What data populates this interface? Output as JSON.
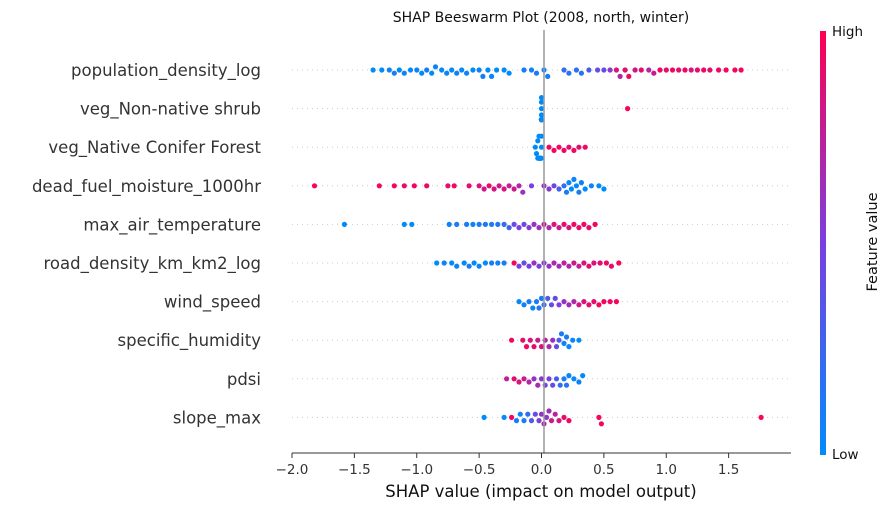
{
  "chart_data": {
    "type": "scatter",
    "subtype": "shap-beeswarm",
    "title": "SHAP Beeswarm Plot (2008, north, winter)",
    "xlabel": "SHAP value (impact on model output)",
    "xlim": [
      -2.0,
      2.0
    ],
    "xticks": [
      -2.0,
      -1.5,
      -1.0,
      -0.5,
      0.0,
      0.5,
      1.0,
      1.5
    ],
    "xtick_labels": [
      "−2.0",
      "−1.5",
      "−1.0",
      "−0.5",
      "0.0",
      "0.5",
      "1.0",
      "1.5"
    ],
    "grid": false,
    "colorbar": {
      "title": "Feature value",
      "high_label": "High",
      "low_label": "Low",
      "low_color": "#008bfb",
      "high_color": "#ff0052"
    },
    "features": [
      {
        "name": "population_density_log",
        "points": [
          [
            -1.35,
            0.0
          ],
          [
            -1.28,
            0.0
          ],
          [
            -1.22,
            0.05
          ],
          [
            -1.18,
            0.1
          ],
          [
            -1.14,
            0.0
          ],
          [
            -1.1,
            0.05
          ],
          [
            -1.05,
            0.0
          ],
          [
            -1.0,
            0.05
          ],
          [
            -0.96,
            0.0
          ],
          [
            -0.92,
            0.1
          ],
          [
            -0.88,
            0.0
          ],
          [
            -0.85,
            0.05
          ],
          [
            -0.8,
            0.0
          ],
          [
            -0.76,
            0.05
          ],
          [
            -0.72,
            0.0
          ],
          [
            -0.68,
            0.1
          ],
          [
            -0.64,
            0.0
          ],
          [
            -0.6,
            0.05
          ],
          [
            -0.55,
            0.0
          ],
          [
            -0.5,
            0.05
          ],
          [
            -0.47,
            0.1
          ],
          [
            -0.43,
            0.0
          ],
          [
            -0.4,
            0.05
          ],
          [
            -0.36,
            0.0
          ],
          [
            -0.3,
            0.0
          ],
          [
            -0.26,
            0.0
          ],
          [
            -0.14,
            0.1
          ],
          [
            -0.08,
            0.05
          ],
          [
            -0.04,
            0.1
          ],
          [
            0.02,
            0.05
          ],
          [
            0.05,
            0.1
          ],
          [
            0.18,
            0.2
          ],
          [
            0.22,
            0.15
          ],
          [
            0.28,
            0.2
          ],
          [
            0.32,
            0.15
          ],
          [
            0.38,
            0.3
          ],
          [
            0.45,
            0.4
          ],
          [
            0.5,
            0.4
          ],
          [
            0.55,
            0.55
          ],
          [
            0.6,
            0.85
          ],
          [
            0.63,
            0.7
          ],
          [
            0.67,
            0.9
          ],
          [
            0.7,
            0.95
          ],
          [
            0.75,
            0.8
          ],
          [
            0.8,
            0.9
          ],
          [
            0.86,
            0.7
          ],
          [
            0.9,
            0.8
          ],
          [
            0.95,
            0.95
          ],
          [
            1.0,
            0.9
          ],
          [
            1.05,
            0.95
          ],
          [
            1.1,
            0.9
          ],
          [
            1.15,
            0.95
          ],
          [
            1.2,
            0.85
          ],
          [
            1.25,
            0.9
          ],
          [
            1.3,
            0.95
          ],
          [
            1.35,
            0.9
          ],
          [
            1.42,
            0.95
          ],
          [
            1.48,
            0.95
          ],
          [
            1.55,
            0.95
          ],
          [
            1.6,
            0.95
          ]
        ]
      },
      {
        "name": "veg_Non-native shrub ",
        "points": [
          [
            0.0,
            0.0
          ],
          [
            0.0,
            0.0
          ],
          [
            0.0,
            0.0
          ],
          [
            0.0,
            0.0
          ],
          [
            0.0,
            0.0
          ],
          [
            0.0,
            0.0
          ],
          [
            0.0,
            0.0
          ],
          [
            0.0,
            0.0
          ],
          [
            0.0,
            0.0
          ],
          [
            0.0,
            0.0
          ],
          [
            0.0,
            0.0
          ],
          [
            0.0,
            0.0
          ],
          [
            0.0,
            0.0
          ],
          [
            0.0,
            0.0
          ],
          [
            0.0,
            0.0
          ],
          [
            0.0,
            0.0
          ],
          [
            0.69,
            0.98
          ]
        ]
      },
      {
        "name": "veg_Native Conifer Forest ",
        "points": [
          [
            -0.05,
            0.0
          ],
          [
            -0.04,
            0.0
          ],
          [
            -0.03,
            0.0
          ],
          [
            -0.03,
            0.0
          ],
          [
            -0.02,
            0.0
          ],
          [
            -0.02,
            0.0
          ],
          [
            -0.02,
            0.0
          ],
          [
            -0.01,
            0.0
          ],
          [
            -0.01,
            0.0
          ],
          [
            -0.01,
            0.0
          ],
          [
            -0.01,
            0.0
          ],
          [
            -0.01,
            0.0
          ],
          [
            -0.01,
            0.0
          ],
          [
            0.0,
            0.0
          ],
          [
            0.0,
            0.0
          ],
          [
            0.0,
            0.0
          ],
          [
            0.06,
            0.95
          ],
          [
            0.1,
            0.95
          ],
          [
            0.14,
            0.95
          ],
          [
            0.18,
            0.95
          ],
          [
            0.22,
            0.9
          ],
          [
            0.26,
            0.95
          ],
          [
            0.3,
            0.9
          ],
          [
            0.35,
            0.95
          ]
        ]
      },
      {
        "name": "dead_fuel_moisture_1000hr",
        "points": [
          [
            -1.82,
            0.98
          ],
          [
            -1.3,
            0.95
          ],
          [
            -1.18,
            0.95
          ],
          [
            -1.1,
            0.9
          ],
          [
            -1.02,
            0.95
          ],
          [
            -0.92,
            0.95
          ],
          [
            -0.75,
            0.9
          ],
          [
            -0.7,
            0.95
          ],
          [
            -0.58,
            0.9
          ],
          [
            -0.5,
            0.85
          ],
          [
            -0.46,
            0.8
          ],
          [
            -0.42,
            0.9
          ],
          [
            -0.38,
            0.85
          ],
          [
            -0.34,
            0.8
          ],
          [
            -0.3,
            0.85
          ],
          [
            -0.26,
            0.75
          ],
          [
            -0.22,
            0.8
          ],
          [
            -0.18,
            0.7
          ],
          [
            -0.15,
            0.6
          ],
          [
            -0.08,
            0.5
          ],
          [
            0.02,
            0.6
          ],
          [
            0.06,
            0.55
          ],
          [
            0.1,
            0.45
          ],
          [
            0.14,
            0.3
          ],
          [
            0.18,
            0.2
          ],
          [
            0.2,
            0.1
          ],
          [
            0.22,
            0.05
          ],
          [
            0.24,
            0.0
          ],
          [
            0.26,
            0.05
          ],
          [
            0.28,
            0.0
          ],
          [
            0.3,
            0.1
          ],
          [
            0.32,
            0.05
          ],
          [
            0.35,
            0.0
          ],
          [
            0.4,
            0.05
          ],
          [
            0.46,
            0.0
          ],
          [
            0.5,
            0.0
          ]
        ]
      },
      {
        "name": "max_air_temperature",
        "points": [
          [
            -1.58,
            0.0
          ],
          [
            -1.1,
            0.0
          ],
          [
            -1.04,
            0.0
          ],
          [
            -0.74,
            0.05
          ],
          [
            -0.68,
            0.1
          ],
          [
            -0.6,
            0.1
          ],
          [
            -0.55,
            0.05
          ],
          [
            -0.5,
            0.1
          ],
          [
            -0.45,
            0.15
          ],
          [
            -0.4,
            0.1
          ],
          [
            -0.35,
            0.15
          ],
          [
            -0.3,
            0.2
          ],
          [
            -0.26,
            0.3
          ],
          [
            -0.22,
            0.4
          ],
          [
            -0.18,
            0.5
          ],
          [
            -0.14,
            0.45
          ],
          [
            -0.1,
            0.55
          ],
          [
            -0.06,
            0.6
          ],
          [
            -0.02,
            0.65
          ],
          [
            0.02,
            0.75
          ],
          [
            0.06,
            0.7
          ],
          [
            0.1,
            0.85
          ],
          [
            0.14,
            0.8
          ],
          [
            0.18,
            0.9
          ],
          [
            0.22,
            0.85
          ],
          [
            0.26,
            0.95
          ],
          [
            0.3,
            0.9
          ],
          [
            0.34,
            0.95
          ],
          [
            0.38,
            0.9
          ],
          [
            0.43,
            0.95
          ]
        ]
      },
      {
        "name": "road_density_km_km2_log",
        "points": [
          [
            -0.84,
            0.0
          ],
          [
            -0.78,
            0.05
          ],
          [
            -0.72,
            0.0
          ],
          [
            -0.68,
            0.05
          ],
          [
            -0.62,
            0.0
          ],
          [
            -0.58,
            0.1
          ],
          [
            -0.54,
            0.0
          ],
          [
            -0.5,
            0.05
          ],
          [
            -0.45,
            0.0
          ],
          [
            -0.4,
            0.1
          ],
          [
            -0.35,
            0.05
          ],
          [
            -0.3,
            0.1
          ],
          [
            -0.22,
            0.95
          ],
          [
            -0.18,
            0.5
          ],
          [
            -0.14,
            0.4
          ],
          [
            -0.1,
            0.5
          ],
          [
            -0.06,
            0.6
          ],
          [
            -0.02,
            0.5
          ],
          [
            0.02,
            0.55
          ],
          [
            0.06,
            0.6
          ],
          [
            0.1,
            0.7
          ],
          [
            0.14,
            0.65
          ],
          [
            0.18,
            0.75
          ],
          [
            0.22,
            0.7
          ],
          [
            0.26,
            0.8
          ],
          [
            0.3,
            0.75
          ],
          [
            0.34,
            0.85
          ],
          [
            0.38,
            0.9
          ],
          [
            0.42,
            0.85
          ],
          [
            0.47,
            0.9
          ],
          [
            0.52,
            0.95
          ],
          [
            0.56,
            0.9
          ],
          [
            0.62,
            0.98
          ]
        ]
      },
      {
        "name": "wind_speed",
        "points": [
          [
            -0.18,
            0.0
          ],
          [
            -0.14,
            0.05
          ],
          [
            -0.1,
            0.1
          ],
          [
            -0.07,
            0.05
          ],
          [
            -0.04,
            0.1
          ],
          [
            -0.02,
            0.15
          ],
          [
            0.0,
            0.1
          ],
          [
            0.02,
            0.2
          ],
          [
            0.05,
            0.3
          ],
          [
            0.08,
            0.4
          ],
          [
            0.11,
            0.45
          ],
          [
            0.14,
            0.5
          ],
          [
            0.18,
            0.6
          ],
          [
            0.22,
            0.65
          ],
          [
            0.26,
            0.7
          ],
          [
            0.3,
            0.8
          ],
          [
            0.34,
            0.85
          ],
          [
            0.38,
            0.9
          ],
          [
            0.42,
            0.9
          ],
          [
            0.46,
            0.95
          ],
          [
            0.5,
            0.95
          ],
          [
            0.55,
            0.95
          ],
          [
            0.6,
            0.98
          ]
        ]
      },
      {
        "name": "specific_humidity",
        "points": [
          [
            -0.24,
            0.95
          ],
          [
            -0.15,
            0.9
          ],
          [
            -0.12,
            0.95
          ],
          [
            -0.09,
            0.85
          ],
          [
            -0.06,
            0.9
          ],
          [
            -0.03,
            0.8
          ],
          [
            0.0,
            0.85
          ],
          [
            0.03,
            0.75
          ],
          [
            0.06,
            0.7
          ],
          [
            0.09,
            0.6
          ],
          [
            0.12,
            0.4
          ],
          [
            0.14,
            0.3
          ],
          [
            0.16,
            0.1
          ],
          [
            0.18,
            0.05
          ],
          [
            0.2,
            0.1
          ],
          [
            0.22,
            0.0
          ],
          [
            0.25,
            0.05
          ],
          [
            0.3,
            0.0
          ]
        ]
      },
      {
        "name": "pdsi",
        "points": [
          [
            -0.28,
            0.75
          ],
          [
            -0.22,
            0.9
          ],
          [
            -0.18,
            0.85
          ],
          [
            -0.14,
            0.8
          ],
          [
            -0.1,
            0.7
          ],
          [
            -0.06,
            0.6
          ],
          [
            -0.03,
            0.65
          ],
          [
            0.0,
            0.55
          ],
          [
            0.03,
            0.45
          ],
          [
            0.06,
            0.5
          ],
          [
            0.09,
            0.4
          ],
          [
            0.12,
            0.3
          ],
          [
            0.15,
            0.2
          ],
          [
            0.18,
            0.1
          ],
          [
            0.2,
            0.15
          ],
          [
            0.22,
            0.05
          ],
          [
            0.26,
            0.0
          ],
          [
            0.3,
            0.05
          ],
          [
            0.33,
            0.0
          ]
        ]
      },
      {
        "name": "slope_max",
        "points": [
          [
            -0.46,
            0.0
          ],
          [
            -0.3,
            0.0
          ],
          [
            -0.24,
            0.95
          ],
          [
            -0.2,
            0.1
          ],
          [
            -0.17,
            0.05
          ],
          [
            -0.14,
            0.1
          ],
          [
            -0.11,
            0.2
          ],
          [
            -0.08,
            0.3
          ],
          [
            -0.05,
            0.4
          ],
          [
            -0.02,
            0.5
          ],
          [
            0.0,
            0.6
          ],
          [
            0.02,
            0.7
          ],
          [
            0.04,
            0.55
          ],
          [
            0.06,
            0.65
          ],
          [
            0.08,
            0.8
          ],
          [
            0.11,
            0.75
          ],
          [
            0.14,
            0.85
          ],
          [
            0.18,
            0.9
          ],
          [
            0.22,
            0.95
          ],
          [
            0.46,
            0.98
          ],
          [
            0.48,
            0.95
          ],
          [
            1.76,
            0.98
          ]
        ]
      }
    ]
  }
}
